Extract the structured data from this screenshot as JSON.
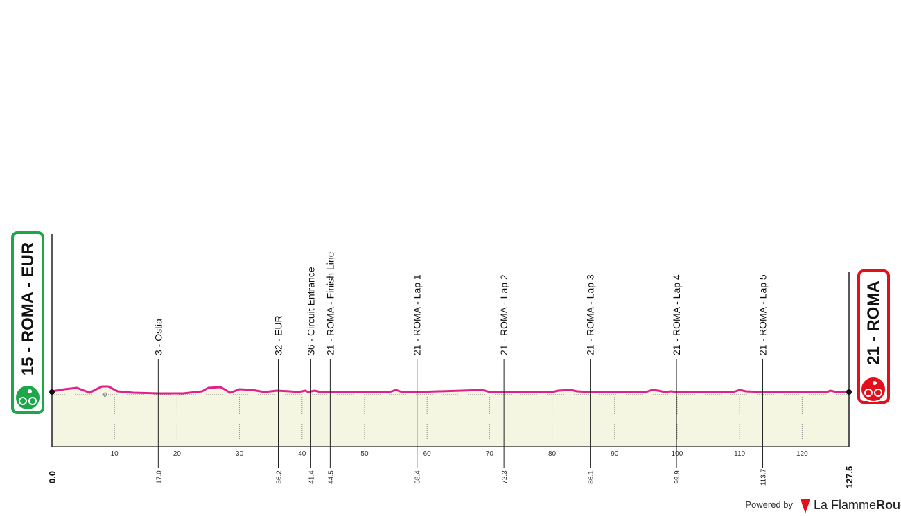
{
  "chart_data": {
    "type": "elevation-profile",
    "start": {
      "label": "15 - ROMA - EUR",
      "color": "#1ea64a"
    },
    "finish": {
      "label": "21 - ROMA",
      "color": "#e3101c"
    },
    "line_color": "#e0218a",
    "fill_color": "#f5f6e2",
    "xlim": [
      0,
      127.5
    ],
    "ylim": [
      -75,
      232
    ],
    "yticks": [
      0
    ],
    "xticks": [
      10,
      20,
      30,
      40,
      50,
      60,
      70,
      80,
      90,
      100,
      110,
      120
    ],
    "km_marks": [
      {
        "value": 0,
        "label": "0.0"
      },
      127.5
    ],
    "x": [
      0,
      2,
      4,
      6,
      8,
      9,
      10.5,
      13,
      17,
      21,
      24,
      25,
      27,
      28.5,
      30,
      32,
      34,
      36,
      38,
      39.5,
      40.5,
      41,
      42,
      43,
      45,
      50,
      54,
      55,
      56,
      58.4,
      68.9,
      70,
      72.3,
      80,
      81,
      83,
      84,
      86.1,
      95,
      96,
      97,
      98,
      99,
      100,
      109,
      110,
      111,
      113.7,
      124,
      124.5,
      125.5,
      127.5
    ],
    "values": [
      5,
      8,
      10,
      3,
      12,
      12,
      5,
      3,
      2,
      2,
      5,
      10,
      11,
      3,
      8,
      7,
      4,
      6,
      5,
      4,
      6,
      4,
      6,
      4,
      4,
      4,
      4,
      7,
      4,
      4,
      7,
      4,
      4,
      4,
      6,
      7,
      5,
      4,
      4,
      7,
      6,
      4,
      5,
      4,
      4,
      7,
      5,
      4,
      4,
      6,
      4,
      4
    ],
    "waypoints": [
      {
        "name": "3 - Ostia",
        "km": {
          "value": 17,
          "label": "17.0"
        }
      },
      {
        "name": "32 - EUR",
        "km": 36.2
      },
      {
        "name": "36 - Circuit Entrance",
        "km": 41.4
      },
      {
        "name": "21 - ROMA - Finish Line",
        "km": 44.5
      },
      {
        "name": "21 - ROMA - Lap 1",
        "km": 58.4
      },
      {
        "name": "21 - ROMA - Lap 2",
        "km": 72.3
      },
      {
        "name": "21 - ROMA - Lap 3",
        "km": 86.1
      },
      {
        "name": "21 - ROMA - Lap 4",
        "km": 99.9
      },
      {
        "name": "21 - ROMA - Lap 5",
        "km": 113.7
      }
    ]
  },
  "footer": {
    "powered_by": "Powered by",
    "brand_light": "La Flamme",
    "brand_bold": "Rouge"
  }
}
